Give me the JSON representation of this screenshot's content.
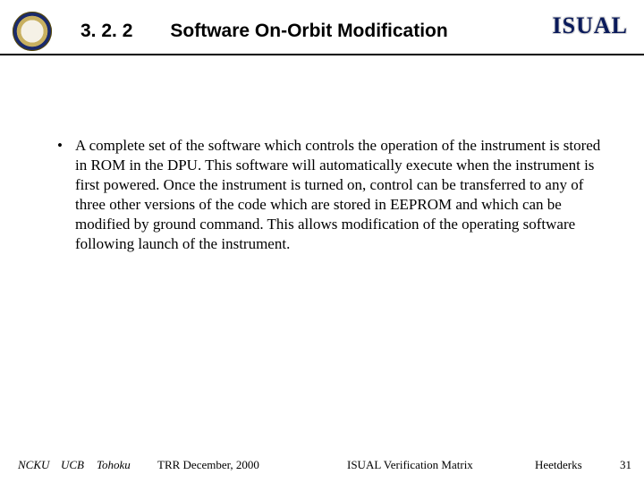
{
  "header": {
    "section_number": "3. 2. 2",
    "title": "Software On-Orbit Modification",
    "logo_text": "ISUAL"
  },
  "body": {
    "bullet_marker": "•",
    "paragraph": "A complete set of the software which controls the operation of the instrument is stored in ROM in the DPU.  This software will automatically execute when the instrument is first powered.  Once the instrument is turned on, control can be transferred to any of three other versions of the code which are stored in EEPROM and which can be modified by ground command.  This allows modification of the operating software following launch of the instrument."
  },
  "footer": {
    "ncku": "NCKU",
    "ucb": "UCB",
    "tohoku": "Tohoku",
    "trr_date": "TRR   December,  2000",
    "center": "ISUAL Verification Matrix",
    "author": "Heetderks",
    "page": "31"
  },
  "colors": {
    "text": "#000000",
    "logo": "#0a1a5a",
    "background": "#ffffff",
    "rule": "#000000"
  }
}
